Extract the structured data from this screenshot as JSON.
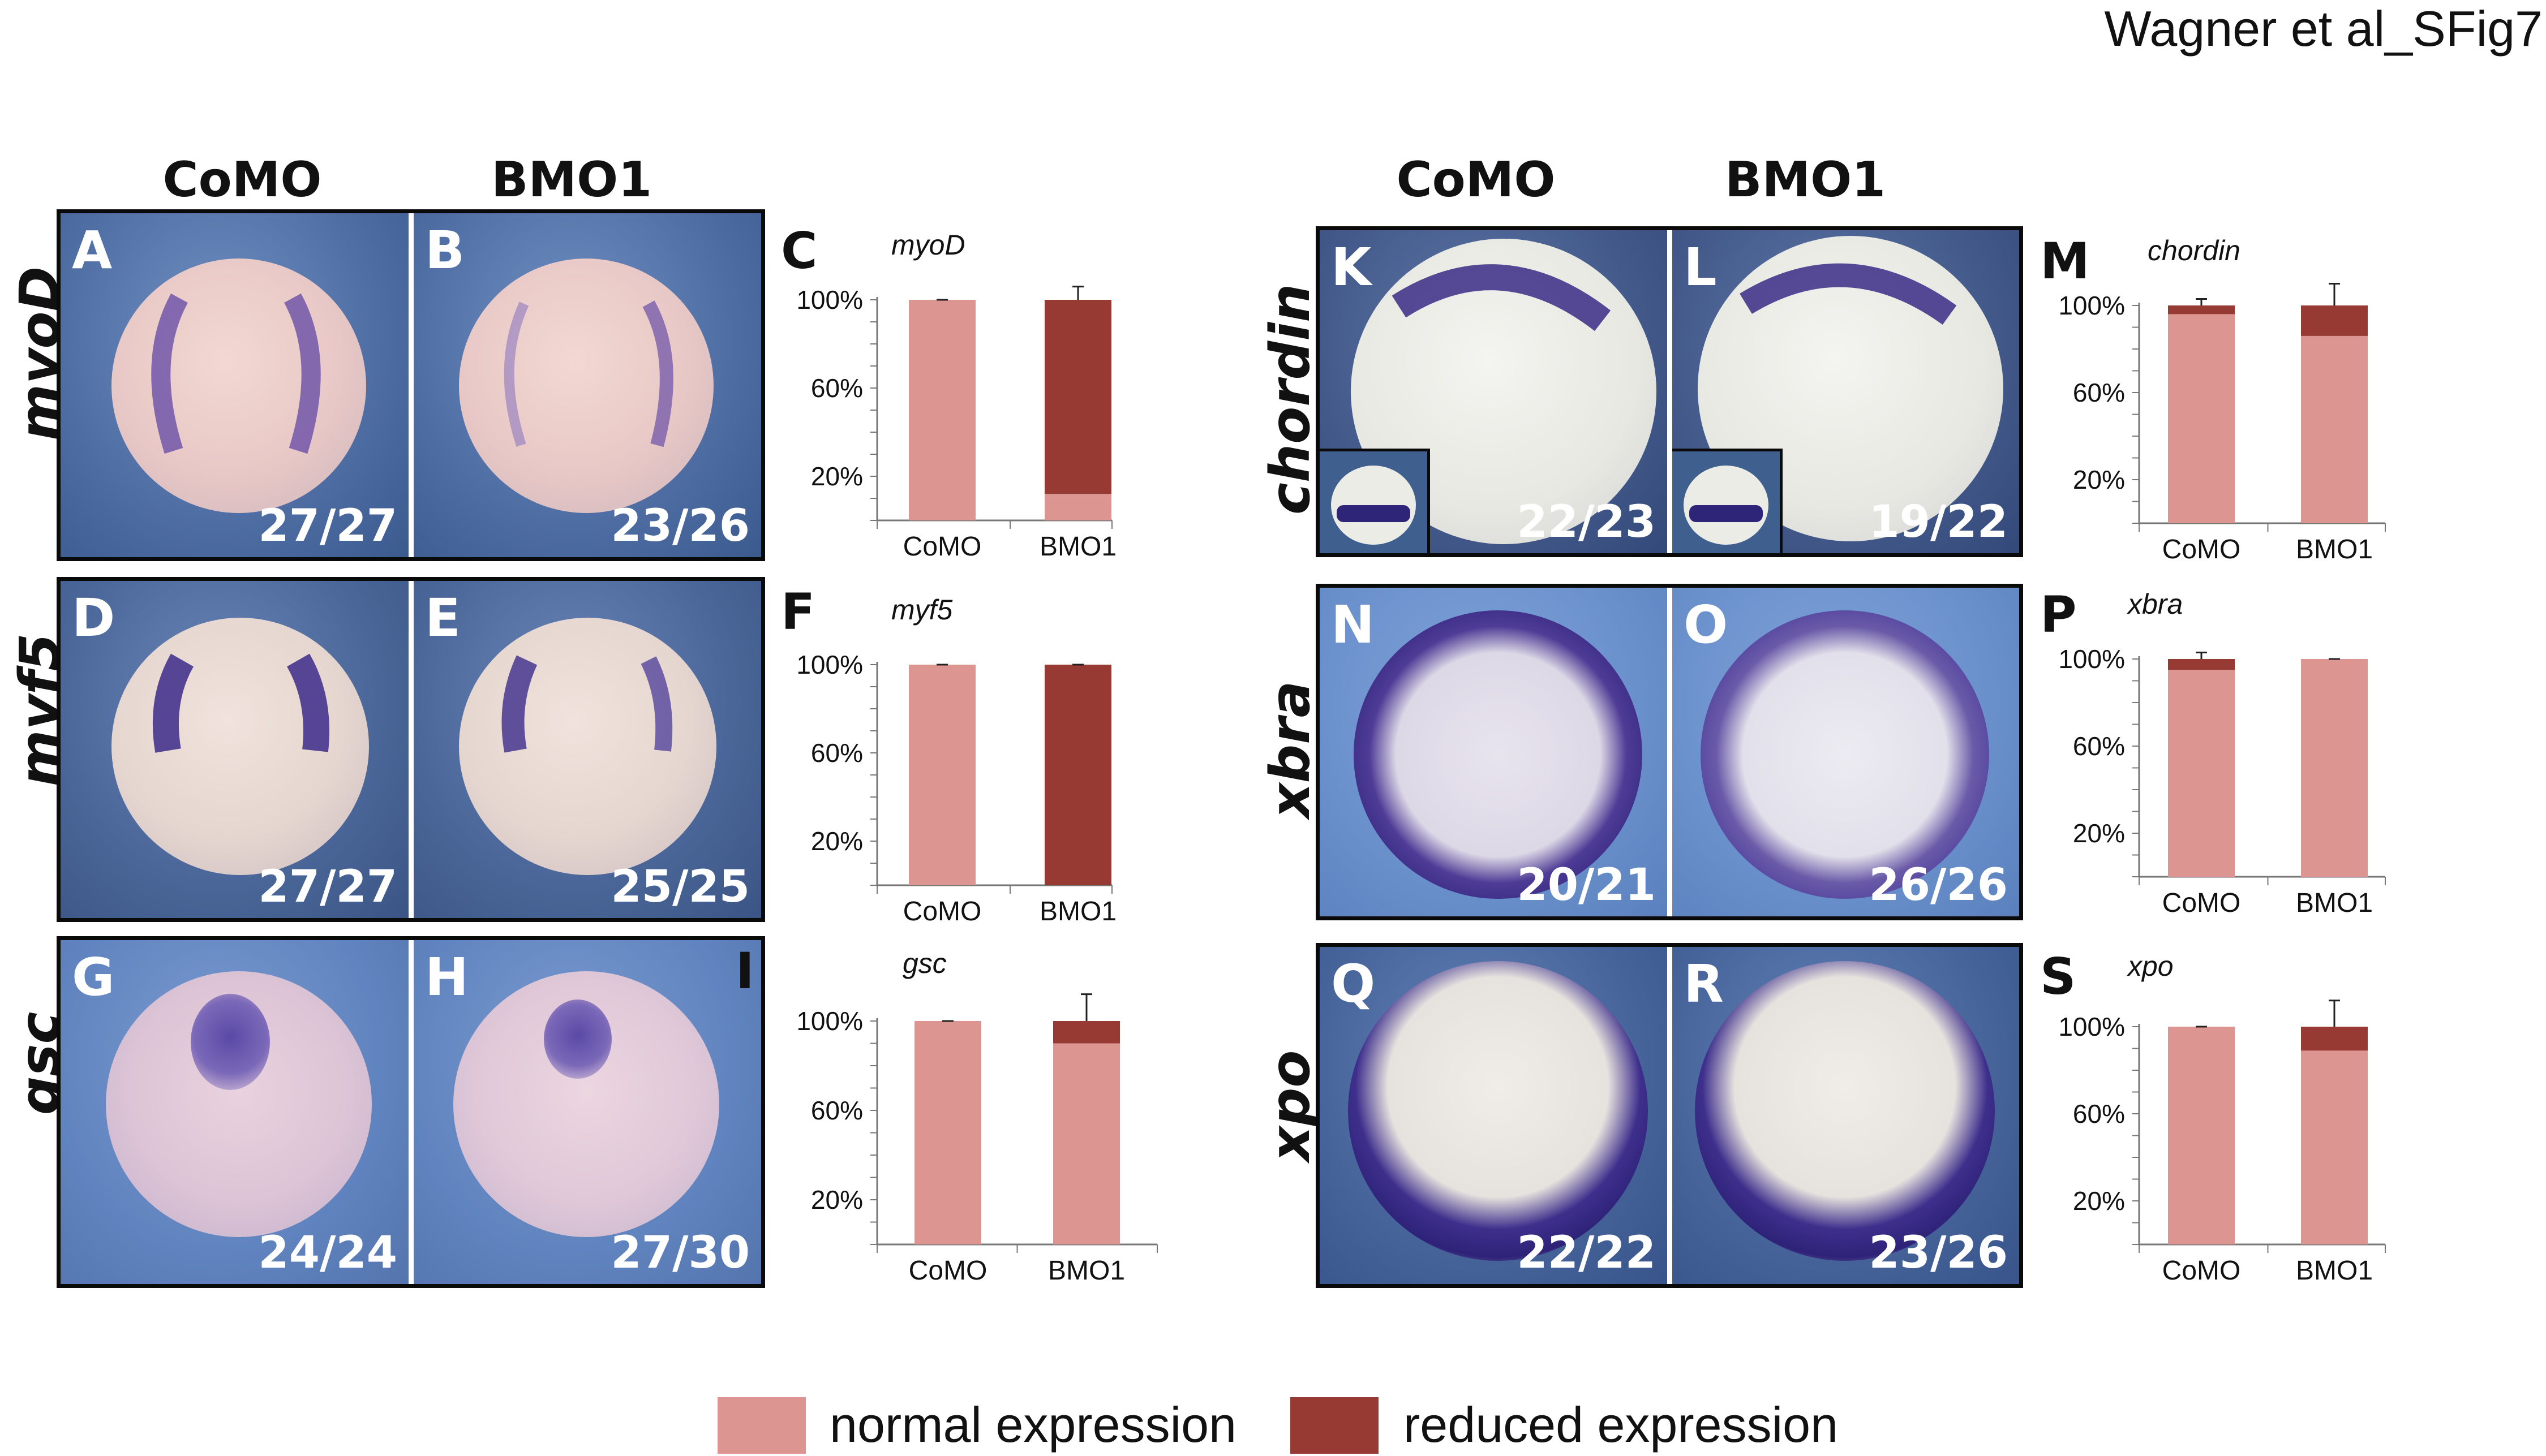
{
  "figure_title": "Wagner et al_SFig7",
  "colors": {
    "normal": "#dd9591",
    "reduced": "#973a34",
    "frame": "#0a0a0a",
    "divider": "#ffffff"
  },
  "left_group": {
    "headers": [
      "CoMO",
      "BMO1"
    ],
    "rows": [
      {
        "gene": "myoD",
        "panels": [
          {
            "letter": "A",
            "count": "27/27"
          },
          {
            "letter": "B",
            "count": "23/26"
          }
        ]
      },
      {
        "gene": "myf5",
        "panels": [
          {
            "letter": "D",
            "count": "27/27"
          },
          {
            "letter": "E",
            "count": "25/25"
          }
        ]
      },
      {
        "gene": "gsc",
        "panels": [
          {
            "letter": "G",
            "count": "24/24"
          },
          {
            "letter": "H",
            "count": "27/30"
          }
        ]
      }
    ]
  },
  "right_group": {
    "headers": [
      "CoMO",
      "BMO1"
    ],
    "rows": [
      {
        "gene": "chordin",
        "panels": [
          {
            "letter": "K",
            "count": "22/23"
          },
          {
            "letter": "L",
            "count": "19/22"
          }
        ]
      },
      {
        "gene": "xbra",
        "panels": [
          {
            "letter": "N",
            "count": "20/21"
          },
          {
            "letter": "O",
            "count": "26/26"
          }
        ]
      },
      {
        "gene": "xpo",
        "panels": [
          {
            "letter": "Q",
            "count": "22/22"
          },
          {
            "letter": "R",
            "count": "23/26"
          }
        ]
      }
    ]
  },
  "chart_data": [
    {
      "panel": "C",
      "type": "bar",
      "stacked": true,
      "title": "myoD",
      "categories": [
        "CoMO",
        "BMO1"
      ],
      "yticks": [
        "20%",
        "60%",
        "100%"
      ],
      "ylim": [
        0,
        100
      ],
      "series": [
        {
          "name": "normal expression",
          "values": [
            100,
            12
          ]
        },
        {
          "name": "reduced expression",
          "values": [
            0,
            88
          ]
        }
      ],
      "error": [
        0,
        6
      ]
    },
    {
      "panel": "F",
      "type": "bar",
      "stacked": true,
      "title": "myf5",
      "categories": [
        "CoMO",
        "BMO1"
      ],
      "yticks": [
        "20%",
        "60%",
        "100%"
      ],
      "ylim": [
        0,
        100
      ],
      "series": [
        {
          "name": "normal expression",
          "values": [
            100,
            0
          ]
        },
        {
          "name": "reduced expression",
          "values": [
            0,
            100
          ]
        }
      ],
      "error": [
        0,
        0
      ]
    },
    {
      "panel": "I",
      "type": "bar",
      "stacked": true,
      "title": "gsc",
      "categories": [
        "CoMO",
        "BMO1"
      ],
      "yticks": [
        "20%",
        "60%",
        "100%"
      ],
      "ylim": [
        0,
        100
      ],
      "series": [
        {
          "name": "normal expression",
          "values": [
            100,
            90
          ]
        },
        {
          "name": "reduced expression",
          "values": [
            0,
            10
          ]
        }
      ],
      "error": [
        0,
        12
      ]
    },
    {
      "panel": "M",
      "type": "bar",
      "stacked": true,
      "title": "chordin",
      "categories": [
        "CoMO",
        "BMO1"
      ],
      "yticks": [
        "20%",
        "60%",
        "100%"
      ],
      "ylim": [
        0,
        100
      ],
      "series": [
        {
          "name": "normal expression",
          "values": [
            96,
            86
          ]
        },
        {
          "name": "reduced expression",
          "values": [
            4,
            14
          ]
        }
      ],
      "error": [
        3,
        10
      ]
    },
    {
      "panel": "P",
      "type": "bar",
      "stacked": true,
      "title": "xbra",
      "categories": [
        "CoMO",
        "BMO1"
      ],
      "yticks": [
        "20%",
        "60%",
        "100%"
      ],
      "ylim": [
        0,
        100
      ],
      "series": [
        {
          "name": "normal expression",
          "values": [
            95,
            100
          ]
        },
        {
          "name": "reduced expression",
          "values": [
            5,
            0
          ]
        }
      ],
      "error": [
        3,
        0
      ]
    },
    {
      "panel": "S",
      "type": "bar",
      "stacked": true,
      "title": "xpo",
      "categories": [
        "CoMO",
        "BMO1"
      ],
      "yticks": [
        "20%",
        "60%",
        "100%"
      ],
      "ylim": [
        0,
        100
      ],
      "series": [
        {
          "name": "normal expression",
          "values": [
            100,
            89
          ]
        },
        {
          "name": "reduced expression",
          "values": [
            0,
            11
          ]
        }
      ],
      "error": [
        0,
        12
      ]
    }
  ],
  "legend": [
    {
      "label": "normal expression",
      "color": "#dd9591"
    },
    {
      "label": "reduced expression",
      "color": "#973a34"
    }
  ]
}
